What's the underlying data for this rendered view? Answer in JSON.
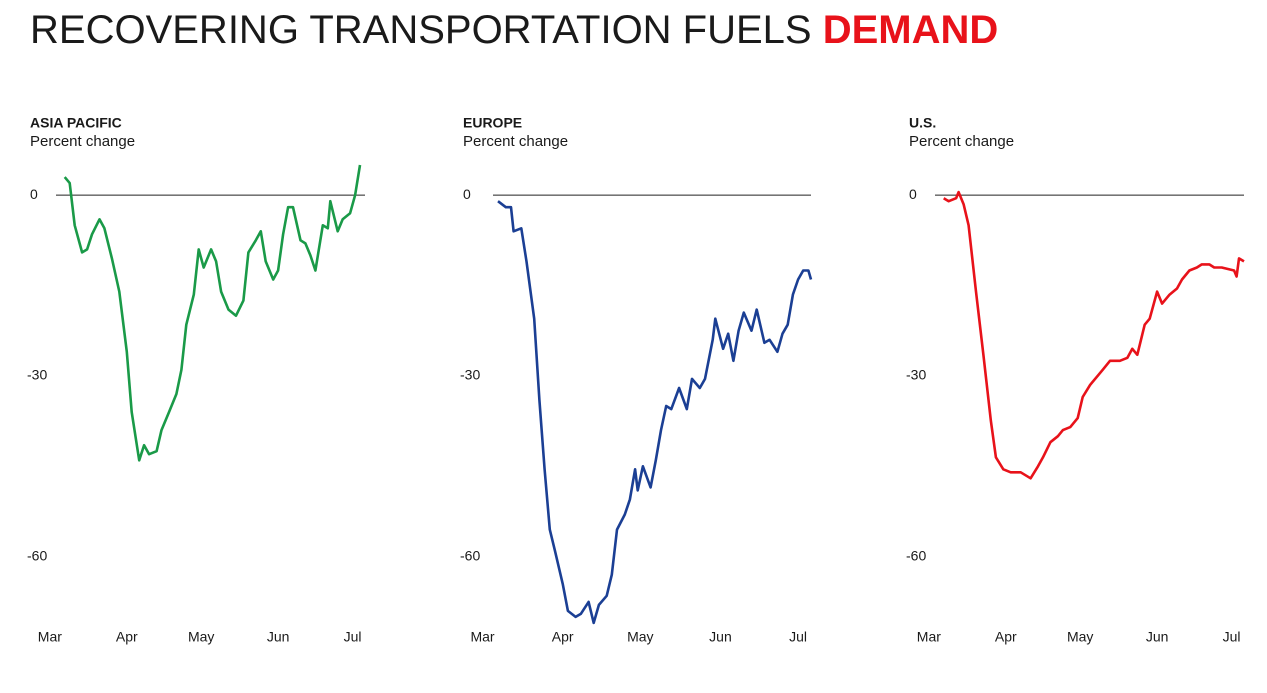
{
  "title": {
    "text": "RECOVERING TRANSPORTATION FUELS",
    "highlight": "DEMAND"
  },
  "chart_data": [
    {
      "type": "line",
      "title": "ASIA PACIFIC",
      "subtitle": "Percent change",
      "xlim": [
        -8,
        127
      ],
      "xticks": [
        {
          "value": 0,
          "label": "Mar"
        },
        {
          "value": 31,
          "label": "Apr"
        },
        {
          "value": 61,
          "label": "May"
        },
        {
          "value": 92,
          "label": "Jun"
        },
        {
          "value": 122,
          "label": "Jul"
        }
      ],
      "ylim": [
        -73,
        6
      ],
      "yticks": [
        0,
        -30,
        -60
      ],
      "series": [
        {
          "name": "Asia Pacific",
          "color": "#1a9a48",
          "x": [
            6,
            8,
            10,
            13,
            15,
            17,
            20,
            22,
            25,
            28,
            31,
            33,
            36,
            38,
            40,
            43,
            45,
            48,
            51,
            53,
            55,
            58,
            60,
            62,
            65,
            67,
            69,
            72,
            75,
            78,
            80,
            83,
            85,
            87,
            90,
            92,
            94,
            96,
            98,
            101,
            103,
            105,
            107,
            110,
            112,
            113,
            116,
            118,
            121,
            123,
            125
          ],
          "values": [
            3,
            2,
            -5,
            -9.5,
            -9,
            -6.5,
            -4,
            -5.5,
            -10.5,
            -16,
            -26,
            -36,
            -44,
            -41.5,
            -43,
            -42.5,
            -39,
            -36,
            -33,
            -29,
            -21.5,
            -16.5,
            -9,
            -12,
            -9,
            -11,
            -16,
            -19,
            -20,
            -17.5,
            -9.5,
            -7.5,
            -6,
            -11,
            -14,
            -12.5,
            -6.5,
            -2,
            -2,
            -7.5,
            -8,
            -10,
            -12.5,
            -5,
            -5.5,
            -1,
            -6,
            -4,
            -3,
            0,
            5
          ]
        }
      ]
    },
    {
      "type": "line",
      "title": "EUROPE",
      "subtitle": "Percent change",
      "xlim": [
        -6,
        127
      ],
      "xticks": [
        {
          "value": 0,
          "label": "Mar"
        },
        {
          "value": 31,
          "label": "Apr"
        },
        {
          "value": 61,
          "label": "May"
        },
        {
          "value": 92,
          "label": "Jun"
        },
        {
          "value": 122,
          "label": "Jul"
        }
      ],
      "ylim": [
        -73,
        6
      ],
      "yticks": [
        0,
        -30,
        -60
      ],
      "series": [
        {
          "name": "Europe",
          "color": "#1b3f94",
          "x": [
            6,
            9,
            11,
            12,
            15,
            17,
            20,
            22,
            24,
            26,
            28,
            31,
            33,
            36,
            38,
            41,
            43,
            45,
            48,
            50,
            52,
            55,
            57,
            59,
            60,
            62,
            65,
            67,
            69,
            71,
            73,
            76,
            79,
            81,
            84,
            86,
            89,
            90,
            93,
            95,
            97,
            99,
            101,
            104,
            106,
            109,
            111,
            114,
            116,
            118,
            120,
            122,
            124,
            126,
            127
          ],
          "values": [
            -1,
            -2,
            -2,
            -6,
            -5.5,
            -11,
            -20.5,
            -34,
            -45.5,
            -55.5,
            -59,
            -64.5,
            -69,
            -70,
            -69.5,
            -67.5,
            -71,
            -68,
            -66.5,
            -63,
            -55.5,
            -53,
            -50.5,
            -45.5,
            -49,
            -45,
            -48.5,
            -44,
            -39,
            -35,
            -35.5,
            -32,
            -35.5,
            -30.5,
            -32,
            -30.5,
            -24,
            -20.5,
            -25.5,
            -23,
            -27.5,
            -22.5,
            -19.5,
            -22.5,
            -19,
            -24.5,
            -24,
            -26,
            -23,
            -21.5,
            -16.5,
            -14,
            -12.5,
            -12.5,
            -14
          ]
        }
      ]
    },
    {
      "type": "line",
      "title": "U.S.",
      "subtitle": "Percent change",
      "xlim": [
        -8,
        127
      ],
      "xticks": [
        {
          "value": 0,
          "label": "Mar"
        },
        {
          "value": 31,
          "label": "Apr"
        },
        {
          "value": 61,
          "label": "May"
        },
        {
          "value": 92,
          "label": "Jun"
        },
        {
          "value": 122,
          "label": "Jul"
        }
      ],
      "ylim": [
        -73,
        6
      ],
      "yticks": [
        0,
        -30,
        -60
      ],
      "series": [
        {
          "name": "U.S.",
          "color": "#e8121a",
          "x": [
            6,
            8,
            11,
            12,
            14,
            16,
            19,
            22,
            25,
            27,
            30,
            33,
            37,
            41,
            44,
            46,
            49,
            52,
            54,
            57,
            60,
            62,
            65,
            68,
            70,
            73,
            77,
            80,
            82,
            84,
            87,
            89,
            92,
            94,
            97,
            100,
            102,
            105,
            108,
            110,
            113,
            115,
            118,
            123,
            124,
            125,
            127
          ],
          "values": [
            -0.5,
            -1,
            -0.5,
            0.5,
            -1.5,
            -5,
            -16,
            -26.5,
            -37.5,
            -43.5,
            -45.5,
            -46,
            -46,
            -47,
            -45,
            -43.5,
            -41,
            -40,
            -39,
            -38.5,
            -37,
            -33.5,
            -31.5,
            -30,
            -29,
            -27.5,
            -27.5,
            -27,
            -25.5,
            -26.5,
            -21.5,
            -20.5,
            -16,
            -18,
            -16.5,
            -15.5,
            -14,
            -12.5,
            -12,
            -11.5,
            -11.5,
            -12,
            -12,
            -12.5,
            -13.5,
            -10.5,
            -11
          ]
        }
      ]
    }
  ]
}
